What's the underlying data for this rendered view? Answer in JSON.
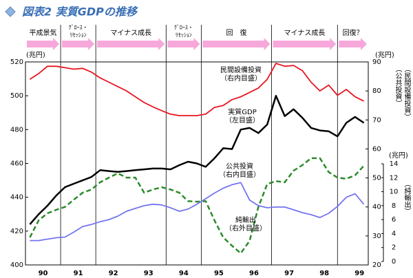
{
  "chart_data": {
    "type": "line",
    "title": "図表2 実質GDPの推移",
    "ylabel": "(兆円)",
    "y2label": "(兆円)",
    "y3label": "(兆円)",
    "y2names": [
      "（公共投資）",
      "（民間設備投資）"
    ],
    "y3name": "（純輸出）",
    "xlim": [
      90,
      99.75
    ],
    "xticks": [
      {
        "value": 90.5,
        "label": "90"
      },
      {
        "value": 91.5,
        "label": "91"
      },
      {
        "value": 92.5,
        "label": "92"
      },
      {
        "value": 93.5,
        "label": "93"
      },
      {
        "value": 94.5,
        "label": "94"
      },
      {
        "value": 95.5,
        "label": "95"
      },
      {
        "value": 96.5,
        "label": "96"
      },
      {
        "value": 97.5,
        "label": "97"
      },
      {
        "value": 98.5,
        "label": "98"
      },
      {
        "value": 99.5,
        "label": "99"
      }
    ],
    "ylim": [
      400,
      520
    ],
    "yticks": [
      400,
      420,
      440,
      460,
      480,
      500,
      520
    ],
    "y2lim": [
      20,
      90
    ],
    "y2ticks": [
      20,
      30,
      40,
      50,
      60,
      70,
      80,
      90
    ],
    "y3lim": [
      0,
      14
    ],
    "y3ticks": [
      0,
      2,
      4,
      6,
      8,
      10,
      12,
      14
    ],
    "phases": [
      {
        "lines": [
          "平成景気"
        ],
        "start": 90,
        "end": 91
      },
      {
        "lines": [
          "ｸﾞﾛｰｽ・",
          "ﾘｾｯｼｮﾝ"
        ],
        "start": 91,
        "end": 92
      },
      {
        "lines": [
          "マイナス成長"
        ],
        "start": 92,
        "end": 94
      },
      {
        "lines": [
          "ｸﾞﾛｰｽ・",
          "ﾘｾｯｼｮﾝ"
        ],
        "start": 94,
        "end": 95
      },
      {
        "lines": [
          "回　復"
        ],
        "start": 95,
        "end": 97
      },
      {
        "lines": [
          "マイナス成長"
        ],
        "start": 97,
        "end": 98.875
      },
      {
        "lines": [
          "回復？"
        ],
        "start": 98.875,
        "end": 99.75
      }
    ],
    "annotations": [
      {
        "lines": [
          "民間設備投資",
          "（右内目盛）"
        ]
      },
      {
        "lines": [
          "実質GDP",
          "（左目盛）"
        ]
      },
      {
        "lines": [
          "公共投資",
          "（右内目盛）"
        ]
      },
      {
        "lines": [
          "純輸出",
          "（右外目盛）"
        ]
      }
    ],
    "x": [
      90.125,
      90.375,
      90.625,
      90.875,
      91.125,
      91.375,
      91.625,
      91.875,
      92.125,
      92.375,
      92.625,
      92.875,
      93.125,
      93.375,
      93.625,
      93.875,
      94.125,
      94.375,
      94.625,
      94.875,
      95.125,
      95.375,
      95.625,
      95.875,
      96.125,
      96.375,
      96.625,
      96.875,
      97.125,
      97.375,
      97.625,
      97.875,
      98.125,
      98.375,
      98.625,
      98.875,
      99.125,
      99.375,
      99.625
    ],
    "series": [
      {
        "name": "民間設備投資",
        "color": "#e8141e",
        "axis": "y2",
        "dash": false,
        "values": [
          84,
          86,
          88.5,
          88.5,
          88,
          87.5,
          87.8,
          86.5,
          84.5,
          83,
          81.5,
          80,
          78,
          76,
          74.5,
          73.2,
          72,
          71.5,
          71.5,
          71.5,
          72,
          74.3,
          75,
          77,
          78,
          79.5,
          81,
          84,
          89.5,
          88.5,
          88.8,
          87,
          83,
          80,
          82,
          78.5,
          80.5,
          78,
          76.5
        ]
      },
      {
        "name": "実質GDP",
        "color": "#000000",
        "axis": "y",
        "dash": false,
        "values": [
          424,
          430,
          435,
          441,
          446,
          448,
          450,
          452,
          456,
          455.5,
          455,
          455.5,
          456,
          456.5,
          457,
          457,
          456.5,
          459,
          461,
          460,
          458,
          463,
          469,
          468.5,
          480,
          481,
          478,
          483,
          500,
          488,
          492,
          487,
          481,
          479.5,
          479,
          476,
          484,
          487.5,
          484
        ]
      },
      {
        "name": "公共投資",
        "color": "#2a8a2a",
        "axis": "y2",
        "dash": true,
        "values": [
          29.5,
          35.4,
          37.8,
          39,
          40,
          42.5,
          44.9,
          46,
          48.5,
          50.1,
          51.6,
          50.1,
          50.1,
          44.9,
          46,
          46.8,
          46,
          44.9,
          42,
          41.8,
          42,
          35.4,
          29.5,
          26.6,
          24,
          28.3,
          40,
          47.9,
          48.9,
          48.5,
          52.5,
          54.4,
          56.8,
          56.8,
          52,
          50.1,
          49.7,
          50.9,
          54.2
        ]
      },
      {
        "name": "純輸出",
        "color": "#7474f0",
        "axis": "y3",
        "dash": false,
        "values": [
          3.0,
          3.0,
          3.2,
          3.4,
          3.5,
          4.2,
          5.0,
          5.3,
          5.7,
          6.0,
          6.5,
          7.2,
          7.6,
          8.0,
          8.2,
          8.1,
          7.7,
          7.2,
          7.5,
          8.2,
          9.0,
          9.8,
          10.5,
          11.0,
          11.3,
          8.8,
          8.0,
          7.7,
          7.8,
          7.8,
          7.4,
          7.0,
          6.7,
          6.3,
          6.9,
          7.9,
          9.2,
          9.7,
          8.2
        ]
      }
    ]
  }
}
